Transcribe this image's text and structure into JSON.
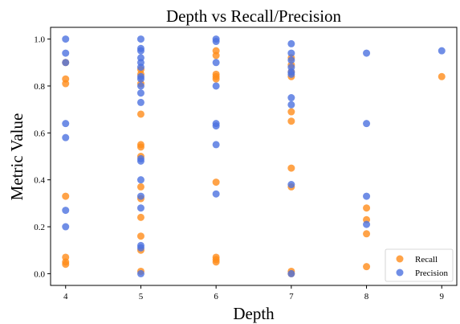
{
  "chart_data": {
    "type": "scatter",
    "title": "Depth vs Recall/Precision",
    "xlabel": "Depth",
    "ylabel": "Metric Value",
    "xlim": [
      3.8,
      9.2
    ],
    "ylim": [
      -0.05,
      1.05
    ],
    "xticks": [
      "4",
      "5",
      "6",
      "7",
      "8",
      "9"
    ],
    "yticks": [
      "0.0",
      "0.2",
      "0.4",
      "0.6",
      "0.8",
      "1.0"
    ],
    "grid": false,
    "legend_position": "bottom-right",
    "series": [
      {
        "name": "Recall",
        "color": "#ff8c1a",
        "points": [
          [
            4,
            0.9
          ],
          [
            4,
            0.83
          ],
          [
            4,
            0.81
          ],
          [
            4,
            0.33
          ],
          [
            4,
            0.07
          ],
          [
            4,
            0.05
          ],
          [
            4,
            0.04
          ],
          [
            5,
            0.87
          ],
          [
            5,
            0.85
          ],
          [
            5,
            0.81
          ],
          [
            5,
            0.68
          ],
          [
            5,
            0.55
          ],
          [
            5,
            0.54
          ],
          [
            5,
            0.5
          ],
          [
            5,
            0.37
          ],
          [
            5,
            0.32
          ],
          [
            5,
            0.24
          ],
          [
            5,
            0.16
          ],
          [
            5,
            0.1
          ],
          [
            5,
            0.01
          ],
          [
            6,
            0.95
          ],
          [
            6,
            0.93
          ],
          [
            6,
            0.85
          ],
          [
            6,
            0.84
          ],
          [
            6,
            0.83
          ],
          [
            6,
            0.39
          ],
          [
            6,
            0.07
          ],
          [
            6,
            0.06
          ],
          [
            6,
            0.05
          ],
          [
            7,
            0.92
          ],
          [
            7,
            0.89
          ],
          [
            7,
            0.86
          ],
          [
            7,
            0.84
          ],
          [
            7,
            0.69
          ],
          [
            7,
            0.65
          ],
          [
            7,
            0.45
          ],
          [
            7,
            0.37
          ],
          [
            7,
            0.01
          ],
          [
            7,
            0.0
          ],
          [
            8,
            0.28
          ],
          [
            8,
            0.23
          ],
          [
            8,
            0.17
          ],
          [
            8,
            0.03
          ],
          [
            9,
            0.84
          ]
        ]
      },
      {
        "name": "Precision",
        "color": "#4c72e0",
        "points": [
          [
            4,
            1.0
          ],
          [
            4,
            0.94
          ],
          [
            4,
            0.9
          ],
          [
            4,
            0.64
          ],
          [
            4,
            0.58
          ],
          [
            4,
            0.27
          ],
          [
            4,
            0.2
          ],
          [
            5,
            1.0
          ],
          [
            5,
            0.96
          ],
          [
            5,
            0.95
          ],
          [
            5,
            0.92
          ],
          [
            5,
            0.9
          ],
          [
            5,
            0.88
          ],
          [
            5,
            0.84
          ],
          [
            5,
            0.83
          ],
          [
            5,
            0.8
          ],
          [
            5,
            0.77
          ],
          [
            5,
            0.73
          ],
          [
            5,
            0.49
          ],
          [
            5,
            0.48
          ],
          [
            5,
            0.4
          ],
          [
            5,
            0.33
          ],
          [
            5,
            0.28
          ],
          [
            5,
            0.12
          ],
          [
            5,
            0.11
          ],
          [
            5,
            0.0
          ],
          [
            6,
            1.0
          ],
          [
            6,
            0.99
          ],
          [
            6,
            0.9
          ],
          [
            6,
            0.8
          ],
          [
            6,
            0.64
          ],
          [
            6,
            0.63
          ],
          [
            6,
            0.55
          ],
          [
            6,
            0.34
          ],
          [
            7,
            0.98
          ],
          [
            7,
            0.94
          ],
          [
            7,
            0.91
          ],
          [
            7,
            0.88
          ],
          [
            7,
            0.86
          ],
          [
            7,
            0.85
          ],
          [
            7,
            0.75
          ],
          [
            7,
            0.72
          ],
          [
            7,
            0.38
          ],
          [
            7,
            0.0
          ],
          [
            8,
            0.94
          ],
          [
            8,
            0.64
          ],
          [
            8,
            0.33
          ],
          [
            8,
            0.21
          ],
          [
            9,
            0.95
          ]
        ]
      }
    ]
  }
}
